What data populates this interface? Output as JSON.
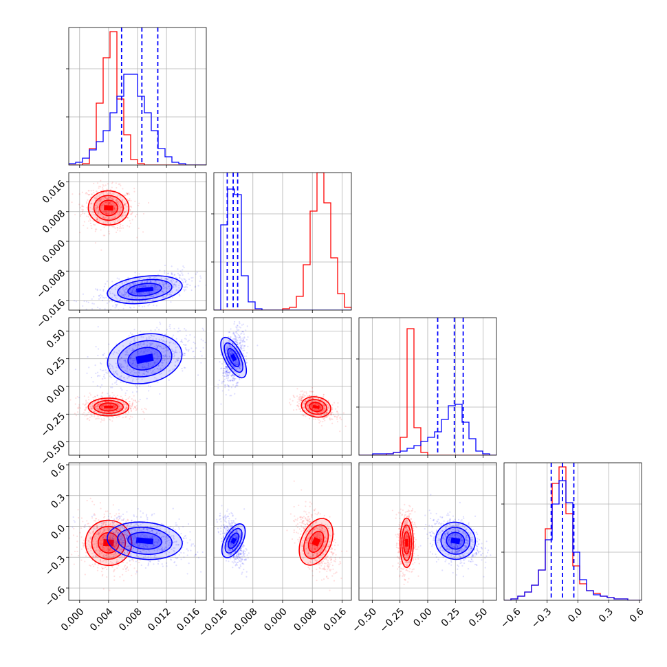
{
  "chart_data": {
    "type": "corner",
    "description_note": "",
    "series": [
      {
        "name": "",
        "color": "#ff0000"
      },
      {
        "name": "",
        "color": "#0000ff"
      }
    ],
    "params": [
      {
        "index": 0,
        "range": [
          -0.0015,
          0.0175
        ],
        "ticks": [
          0.0,
          0.004,
          0.008,
          0.012,
          0.016
        ],
        "tick_labels": [
          "0.000",
          "0.004",
          "0.008",
          "0.012",
          "0.016"
        ]
      },
      {
        "index": 1,
        "range": [
          -0.0185,
          0.0185
        ],
        "ticks": [
          -0.016,
          -0.008,
          0.0,
          0.008,
          0.016
        ],
        "tick_labels": [
          "−0.016",
          "−0.008",
          "0.000",
          "0.008",
          "0.016"
        ]
      },
      {
        "index": 2,
        "range": [
          -0.62,
          0.62
        ],
        "ticks": [
          -0.5,
          -0.25,
          0.0,
          0.25,
          0.5
        ],
        "tick_labels": [
          "−0.50",
          "−0.25",
          "0.00",
          "0.25",
          "0.50"
        ]
      },
      {
        "index": 3,
        "range": [
          -0.72,
          0.62
        ],
        "ticks": [
          -0.6,
          -0.3,
          0.0,
          0.3,
          0.6
        ],
        "tick_labels": [
          "−0.6",
          "−0.3",
          "0.0",
          "0.3",
          "0.6"
        ]
      }
    ],
    "quantiles_blue": [
      [
        0.0058,
        0.0086,
        0.0108
      ],
      [
        -0.0149,
        -0.0133,
        -0.0121
      ],
      [
        0.09,
        0.24,
        0.32
      ],
      [
        -0.26,
        -0.15,
        -0.04
      ]
    ],
    "histograms": {
      "red": [
        [
          0,
          0,
          0.01,
          0.12,
          0.45,
          0.78,
          0.97,
          0.48,
          0.22,
          0.04,
          0.01,
          0,
          0,
          0,
          0,
          0,
          0,
          0,
          0,
          0
        ],
        [
          0,
          0,
          0,
          0,
          0,
          0,
          0,
          0,
          0,
          0,
          0.01,
          0.02,
          0.1,
          0.33,
          0.72,
          1.0,
          0.78,
          0.38,
          0.12,
          0.02
        ],
        [
          0,
          0,
          0,
          0,
          0.01,
          0.02,
          0.13,
          0.92,
          0.2,
          0.02,
          0,
          0,
          0,
          0,
          0,
          0,
          0,
          0,
          0,
          0
        ],
        [
          0.0,
          0.01,
          0.03,
          0.06,
          0.11,
          0.22,
          0.52,
          0.85,
          0.97,
          0.63,
          0.25,
          0.12,
          0.07,
          0.05,
          0.03,
          0.02,
          0.01,
          0.01,
          0.0,
          0.0
        ]
      ],
      "blue": [
        [
          0.01,
          0.02,
          0.05,
          0.11,
          0.17,
          0.25,
          0.38,
          0.5,
          0.66,
          0.66,
          0.5,
          0.38,
          0.25,
          0.12,
          0.06,
          0.02,
          0.01,
          0,
          0,
          0
        ],
        [
          0,
          0.62,
          0.88,
          0.84,
          0.25,
          0.06,
          0.01,
          0,
          0,
          0,
          0,
          0,
          0,
          0,
          0,
          0,
          0,
          0,
          0,
          0
        ],
        [
          0,
          0,
          0.01,
          0.01,
          0.01,
          0.02,
          0.03,
          0.05,
          0.07,
          0.1,
          0.13,
          0.17,
          0.26,
          0.36,
          0.37,
          0.24,
          0.12,
          0.03,
          0.01,
          0
        ],
        [
          0.0,
          0.01,
          0.03,
          0.06,
          0.11,
          0.22,
          0.44,
          0.7,
          0.87,
          0.71,
          0.35,
          0.15,
          0.07,
          0.04,
          0.03,
          0.02,
          0.01,
          0.01,
          0.0,
          0.0
        ]
      ]
    },
    "blobs": {
      "red": [
        {
          "x": 0.004,
          "y": 0.009,
          "sx": 0.0014,
          "sy": 0.0023,
          "rho": -0.1
        },
        {
          "x": 0.004,
          "y": -0.185,
          "sx": 0.0014,
          "sy": 0.04,
          "rho": 0.0
        },
        {
          "x": 0.009,
          "y": -0.185,
          "sx": 0.002,
          "sy": 0.045,
          "rho": -0.5
        },
        {
          "x": 0.004,
          "y": -0.16,
          "sx": 0.0016,
          "sy": 0.11,
          "rho": -0.1
        },
        {
          "x": 0.009,
          "y": -0.15,
          "sx": 0.002,
          "sy": 0.12,
          "rho": -0.5
        },
        {
          "x": -0.19,
          "y": -0.16,
          "sx": 0.03,
          "sy": 0.12,
          "rho": 0.0
        }
      ],
      "blue": [
        {
          "x": 0.009,
          "y": -0.013,
          "sx": 0.0026,
          "sy": 0.0018,
          "rho": 0.55
        },
        {
          "x": 0.009,
          "y": 0.25,
          "sx": 0.0026,
          "sy": 0.11,
          "rho": 0.5
        },
        {
          "x": -0.0132,
          "y": 0.26,
          "sx": 0.0012,
          "sy": 0.1,
          "rho": 0.4
        },
        {
          "x": 0.009,
          "y": -0.14,
          "sx": 0.0026,
          "sy": 0.09,
          "rho": -0.3
        },
        {
          "x": -0.0132,
          "y": -0.14,
          "sx": 0.0012,
          "sy": 0.09,
          "rho": -0.5
        },
        {
          "x": 0.25,
          "y": -0.14,
          "sx": 0.09,
          "sy": 0.09,
          "rho": -0.3
        }
      ]
    },
    "grid": true
  }
}
